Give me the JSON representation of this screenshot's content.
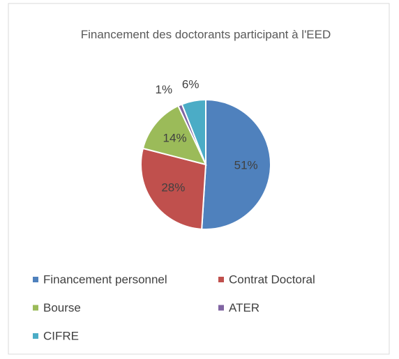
{
  "chart_data": {
    "type": "pie",
    "title": "Financement des doctorants participant à l'EED",
    "categories": [
      "Financement personnel",
      "Contrat Doctoral",
      "Bourse",
      "ATER",
      "CIFRE"
    ],
    "values": [
      51,
      28,
      14,
      1,
      6
    ],
    "value_labels": [
      "51%",
      "28%",
      "14%",
      "1%",
      "6%"
    ],
    "colors": [
      "#4f81bd",
      "#c0504d",
      "#9bbb59",
      "#8064a2",
      "#4bacc6"
    ],
    "legend": "bottom"
  }
}
